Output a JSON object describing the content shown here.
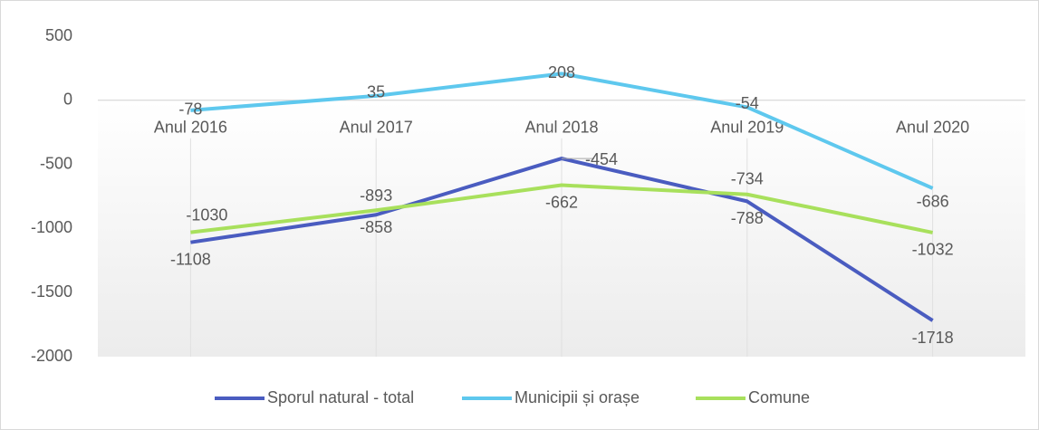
{
  "chart_data": {
    "type": "line",
    "categories": [
      "Anul 2016",
      "Anul 2017",
      "Anul 2018",
      "Anul 2019",
      "Anul 2020"
    ],
    "series": [
      {
        "name": "Sporul natural - total",
        "color": "#4a5cc0",
        "values": [
          -1108,
          -893,
          -454,
          -788,
          -1718
        ]
      },
      {
        "name": "Municipii și orașe",
        "color": "#5ec8ee",
        "values": [
          -78,
          35,
          208,
          -54,
          -686
        ]
      },
      {
        "name": "Comune",
        "color": "#a8e05c",
        "values": [
          -1030,
          -858,
          -662,
          -734,
          -1032
        ]
      }
    ],
    "ylim": [
      -2000,
      500
    ],
    "yticks": [
      500,
      0,
      -500,
      -1000,
      -1500,
      -2000
    ],
    "legend": "bottom"
  }
}
